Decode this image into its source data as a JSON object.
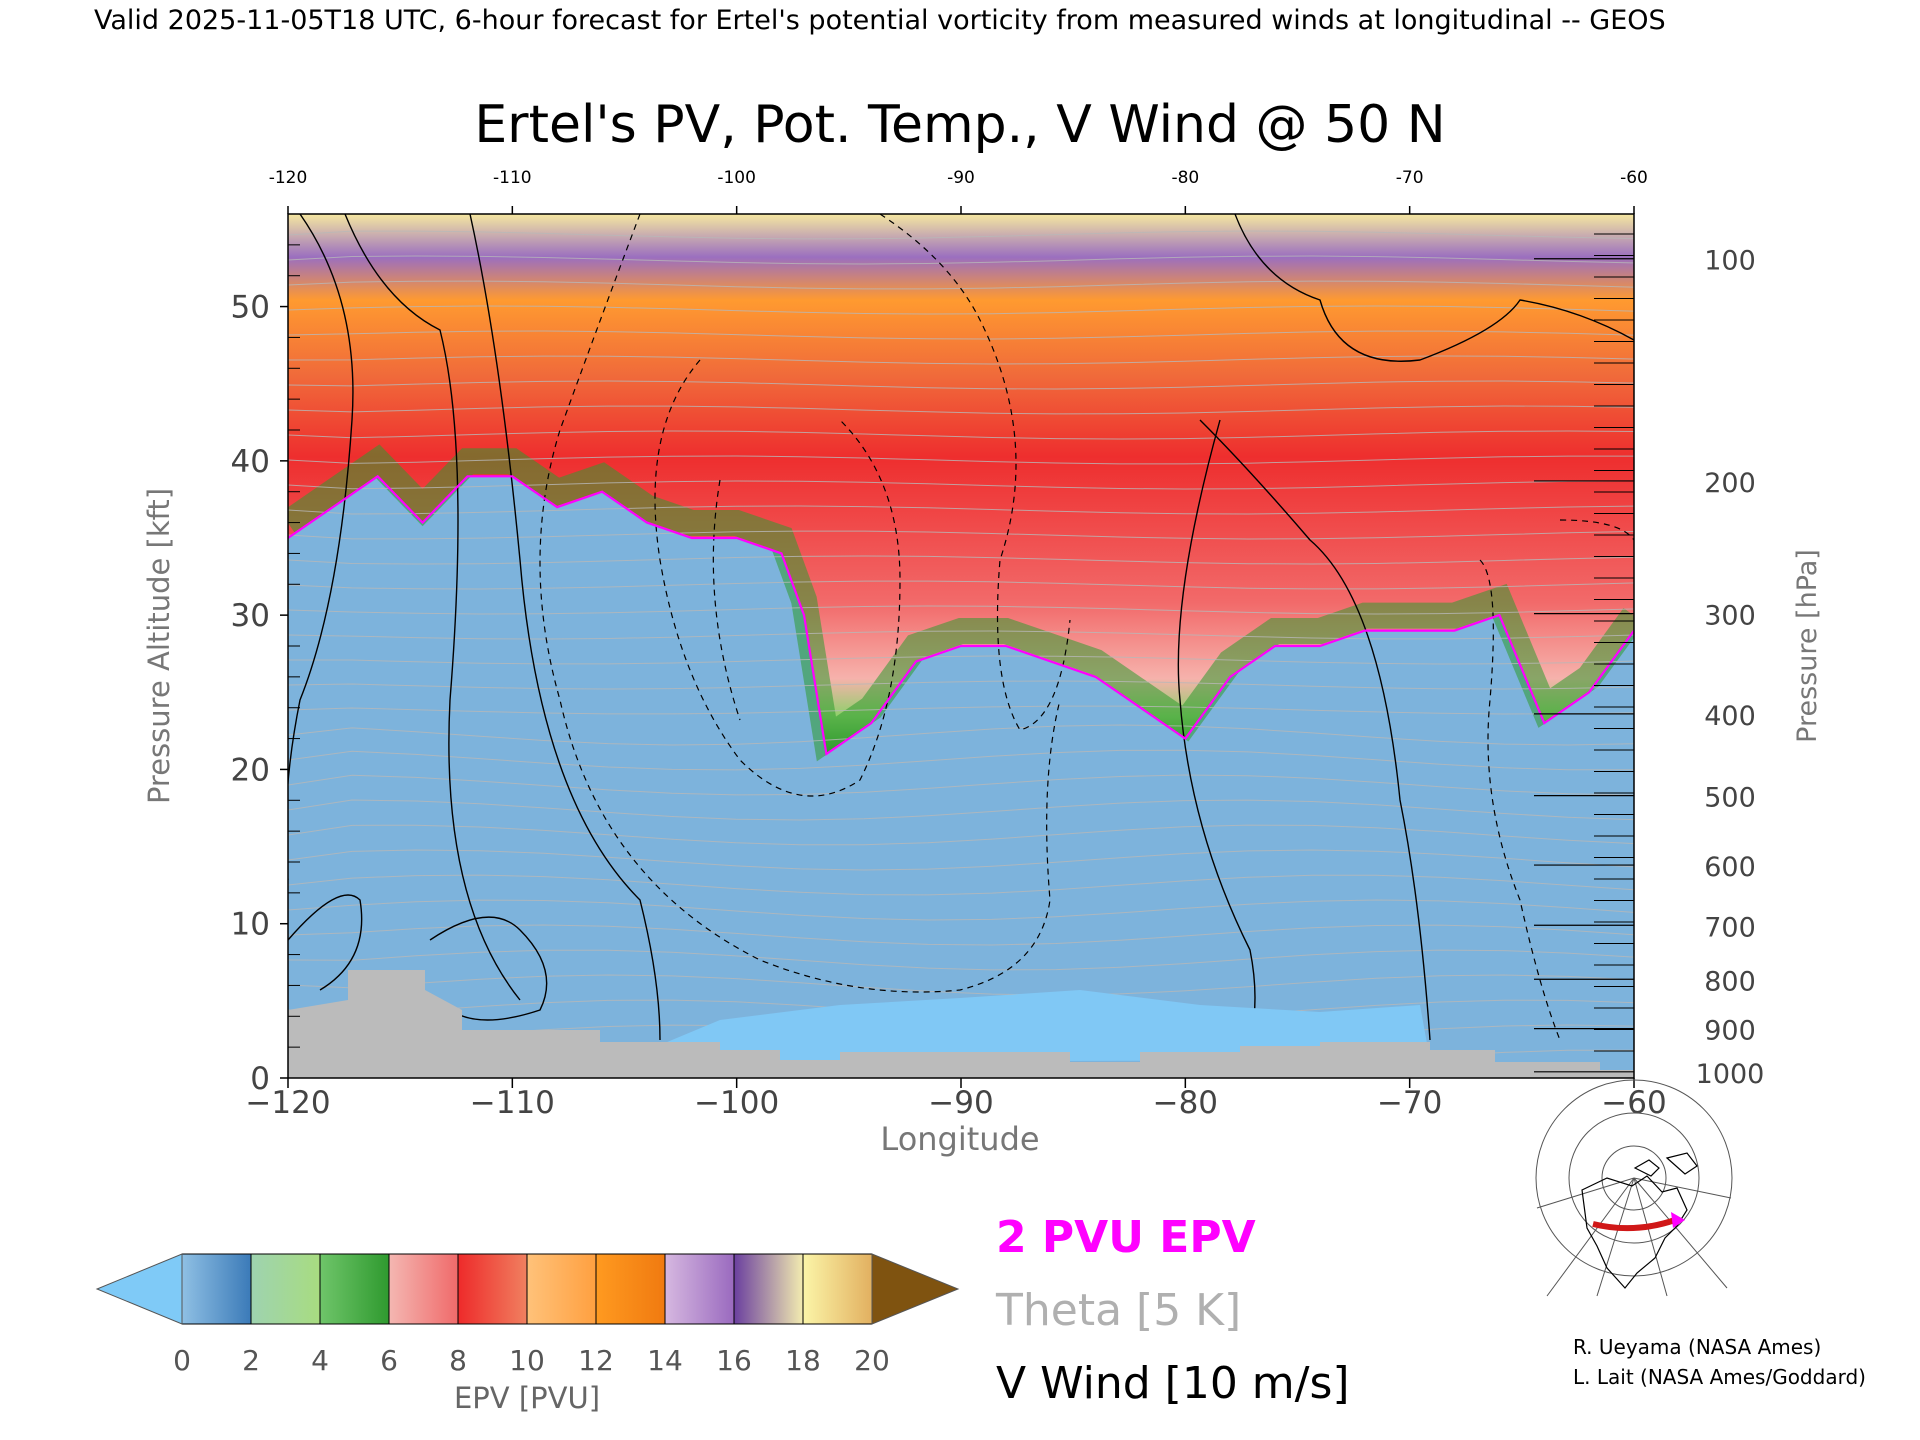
{
  "header": {
    "valid_line": "Valid 2025-11-05T18 UTC, 6-hour forecast for Ertel's potential vorticity from measured winds at longitudinal -- GEOS"
  },
  "chart_data": {
    "type": "heatmap",
    "title": "Ertel's PV, Pot. Temp., V Wind @ 50 N",
    "xlabel": "Longitude",
    "ylabel": "Pressure Altitude [kft]",
    "y2label": "Pressure [hPa]",
    "xlim": [
      -120,
      -60
    ],
    "ylim": [
      0,
      56
    ],
    "x_ticks": [
      -120,
      -110,
      -100,
      -90,
      -80,
      -70,
      -60
    ],
    "x_tick_labels": [
      "−120",
      "−110",
      "−100",
      "−90",
      "−80",
      "−70",
      "−60"
    ],
    "top_tick_labels": [
      "-120",
      "-110",
      "-100",
      "-90",
      "-80",
      "-70",
      "-60"
    ],
    "y_ticks": [
      0,
      10,
      20,
      30,
      40,
      50
    ],
    "y_tick_labels": [
      "0",
      "10",
      "20",
      "30",
      "40",
      "50"
    ],
    "pressure_ticks": [
      {
        "label": "100",
        "kft": 53.1
      },
      {
        "label": "200",
        "kft": 38.7
      },
      {
        "label": "300",
        "kft": 30.1
      },
      {
        "label": "400",
        "kft": 23.6
      },
      {
        "label": "500",
        "kft": 18.3
      },
      {
        "label": "600",
        "kft": 13.8
      },
      {
        "label": "700",
        "kft": 9.9
      },
      {
        "label": "800",
        "kft": 6.4
      },
      {
        "label": "900",
        "kft": 3.2
      },
      {
        "label": "1000",
        "kft": 0.4
      }
    ],
    "tropopause_2pvu": {
      "name": "2 PVU EPV",
      "color": "#ff00ff",
      "x": [
        -120,
        -118,
        -116,
        -114,
        -112,
        -110,
        -108,
        -106,
        -104,
        -102,
        -100,
        -98,
        -97,
        -96,
        -94,
        -92,
        -90,
        -88,
        -86,
        -84,
        -82,
        -80,
        -78,
        -76,
        -74,
        -72,
        -70,
        -68,
        -66,
        -64,
        -62,
        -60
      ],
      "y": [
        35,
        37,
        39,
        36,
        39,
        39,
        37,
        38,
        36,
        35,
        35,
        34,
        30,
        21,
        23,
        27,
        28,
        28,
        27,
        26,
        24,
        22,
        26,
        28,
        28,
        29,
        29,
        29,
        30,
        23,
        25,
        29
      ]
    },
    "colorbar": {
      "label": "EPV [PVU]",
      "min": 0,
      "max": 20,
      "tick_labels": [
        "0",
        "2",
        "4",
        "6",
        "8",
        "10",
        "12",
        "14",
        "16",
        "18",
        "20"
      ],
      "under_color": "#7fcaf7",
      "over_color": "#7f5310",
      "segments": [
        {
          "from": 0,
          "to": 2,
          "colors": [
            "#8fc0e4",
            "#3b7ab8"
          ]
        },
        {
          "from": 2,
          "to": 4,
          "colors": [
            "#9ed3b0",
            "#a8dc80"
          ]
        },
        {
          "from": 4,
          "to": 6,
          "colors": [
            "#6fc56a",
            "#2f9a2f"
          ]
        },
        {
          "from": 6,
          "to": 8,
          "colors": [
            "#f4b7b2",
            "#f06a6a"
          ]
        },
        {
          "from": 8,
          "to": 10,
          "colors": [
            "#ee2a2a",
            "#f08060"
          ]
        },
        {
          "from": 10,
          "to": 12,
          "colors": [
            "#ffc27a",
            "#ffa040"
          ]
        },
        {
          "from": 12,
          "to": 14,
          "colors": [
            "#ff9a20",
            "#f07a10"
          ]
        },
        {
          "from": 14,
          "to": 16,
          "colors": [
            "#d6b8e0",
            "#9a6abf"
          ]
        },
        {
          "from": 16,
          "to": 18,
          "colors": [
            "#6a3f9f",
            "#f3ecb0"
          ]
        },
        {
          "from": 18,
          "to": 20,
          "colors": [
            "#fbf5a8",
            "#e2b060"
          ]
        }
      ]
    },
    "legend": [
      {
        "text": "2 PVU EPV",
        "color": "#ff00ff"
      },
      {
        "text": "Theta [5 K]",
        "color": "#b0b0b0"
      },
      {
        "text": "V Wind [10 m/s]",
        "color": "#000000"
      }
    ]
  },
  "credits": {
    "line1": "R. Ueyama (NASA Ames)",
    "line2": "L. Lait (NASA Ames/Goddard)"
  },
  "colors": {
    "terrain": "#bbbbbb",
    "tropopause": "#ff00ff"
  }
}
